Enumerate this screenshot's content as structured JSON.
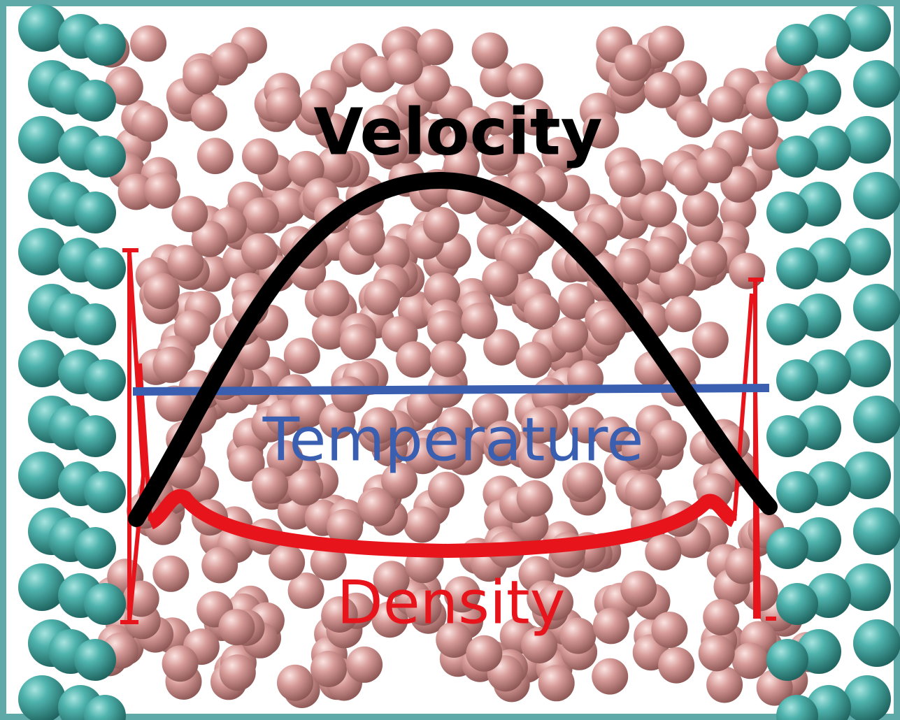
{
  "labels": {
    "velocity": "Velocity",
    "temperature": "Temperature",
    "density": "Density"
  }
}
